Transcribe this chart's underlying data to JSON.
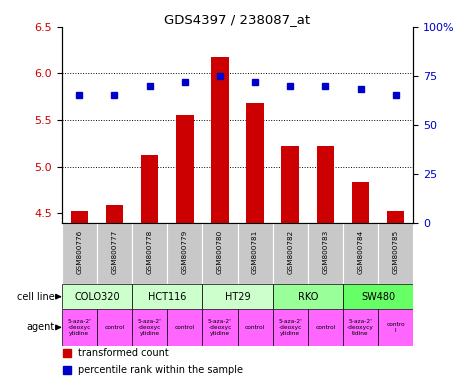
{
  "title": "GDS4397 / 238087_at",
  "samples": [
    "GSM800776",
    "GSM800777",
    "GSM800778",
    "GSM800779",
    "GSM800780",
    "GSM800781",
    "GSM800782",
    "GSM800783",
    "GSM800784",
    "GSM800785"
  ],
  "bar_values": [
    4.52,
    4.59,
    5.12,
    5.55,
    6.18,
    5.68,
    5.22,
    5.22,
    4.84,
    4.52
  ],
  "dot_values": [
    65,
    65,
    70,
    72,
    75,
    72,
    70,
    70,
    68,
    65
  ],
  "bar_color": "#cc0000",
  "dot_color": "#0000cc",
  "ylim_left": [
    4.4,
    6.5
  ],
  "ylim_right": [
    0,
    100
  ],
  "yticks_left": [
    4.5,
    5.0,
    5.5,
    6.0,
    6.5
  ],
  "yticks_right": [
    0,
    25,
    50,
    75,
    100
  ],
  "cell_lines": [
    {
      "label": "COLO320",
      "span": [
        0,
        2
      ],
      "color": "#ccffcc"
    },
    {
      "label": "HCT116",
      "span": [
        2,
        4
      ],
      "color": "#ccffcc"
    },
    {
      "label": "HT29",
      "span": [
        4,
        6
      ],
      "color": "#ccffcc"
    },
    {
      "label": "RKO",
      "span": [
        6,
        8
      ],
      "color": "#99ff99"
    },
    {
      "label": "SW480",
      "span": [
        8,
        10
      ],
      "color": "#66ff66"
    }
  ],
  "agents": [
    {
      "label": "5-aza-2'\n-deoxyc\nytidine",
      "span": [
        0,
        1
      ]
    },
    {
      "label": "control",
      "span": [
        1,
        2
      ]
    },
    {
      "label": "5-aza-2'\n-deoxyc\nytidine",
      "span": [
        2,
        3
      ]
    },
    {
      "label": "control",
      "span": [
        3,
        4
      ]
    },
    {
      "label": "5-aza-2'\n-deoxyc\nytidine",
      "span": [
        4,
        5
      ]
    },
    {
      "label": "control",
      "span": [
        5,
        6
      ]
    },
    {
      "label": "5-aza-2'\n-deoxyc\nytidine",
      "span": [
        6,
        7
      ]
    },
    {
      "label": "control",
      "span": [
        7,
        8
      ]
    },
    {
      "label": "5-aza-2'\n-deoxycy\ntidine",
      "span": [
        8,
        9
      ]
    },
    {
      "label": "contro\nl",
      "span": [
        9,
        10
      ]
    }
  ],
  "agent_color": "#ff66ff",
  "sample_bg_color": "#c8c8c8",
  "legend_bar_label": "transformed count",
  "legend_dot_label": "percentile rank within the sample",
  "row_label_cell_line": "cell line",
  "row_label_agent": "agent"
}
